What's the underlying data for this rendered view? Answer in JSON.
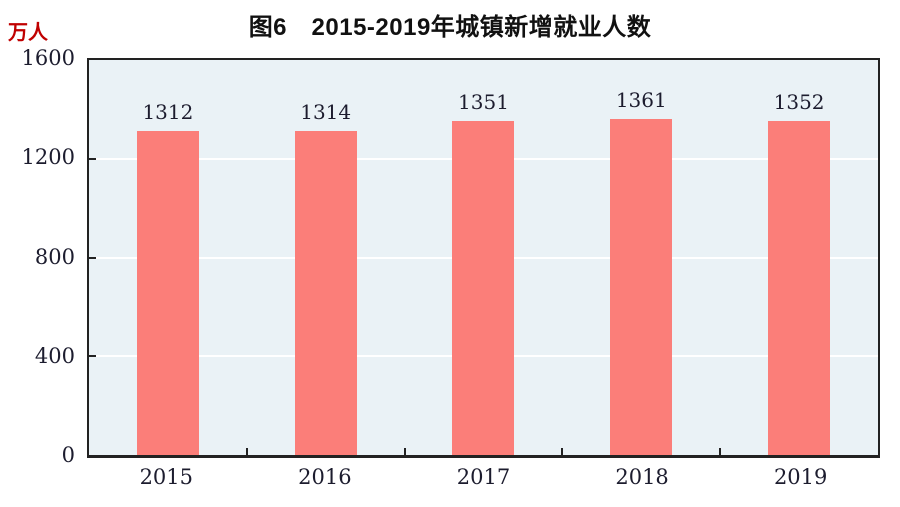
{
  "title": "图6　2015-2019年城镇新增就业人数",
  "y_unit_label": "万人",
  "colors": {
    "bar": "#fb7e79",
    "plot_background": "#eaf2f6",
    "gridline": "#ffffff",
    "axis_border": "#222222",
    "unit_label": "#c00000",
    "text": "#1c1c2e"
  },
  "chart_data": {
    "type": "bar",
    "categories": [
      "2015",
      "2016",
      "2017",
      "2018",
      "2019"
    ],
    "values": [
      1312,
      1314,
      1351,
      1361,
      1352
    ],
    "title": "图6　2015-2019年城镇新增就业人数",
    "xlabel": "",
    "ylabel": "万人",
    "ylim": [
      0,
      1600
    ],
    "yticks": [
      0,
      400,
      800,
      1200,
      1600
    ],
    "grid": true,
    "gridline_color": "#ffffff",
    "bar_color": "#fb7e79",
    "data_labels": true,
    "legend": "none"
  }
}
